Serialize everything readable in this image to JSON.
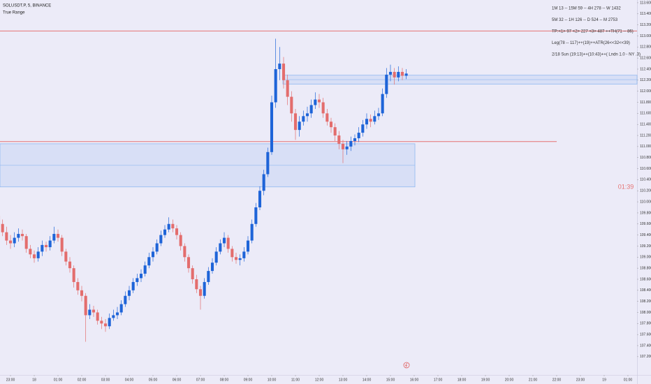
{
  "chart_data": {
    "type": "candlestick",
    "title": "SOLUSDT.P, 5, BINANCE",
    "subtitle": "True Range",
    "info_lines": [
      "1M 13 -- 15M 59 -- 4H 278 -- W 1432",
      "5M 32 -- 1H 126 -- D 524 -- M 2753",
      "TP:<1> 97 <2> 227 <3> 487 ++TH(71 -- 86)",
      "Leg(78 -- 117)++(19)++ATR(26<<32<<39)",
      "2/18 Sun  (19:13)++(10:43)++( Lndn 1.0 - NY .3)"
    ],
    "countdown": "01:39",
    "up_color": "#1e64d8",
    "down_color": "#e36d6d",
    "level_color": "#e57373",
    "zone_color": "#90b8f0",
    "levels": [
      113.09,
      111.09
    ],
    "zones": [
      {
        "top": 111.05,
        "mid": 110.66,
        "bottom": 110.27
      },
      {
        "top": 112.29,
        "mid": 112.21,
        "bottom": 112.13
      }
    ],
    "xlim": [
      0.35,
      161.3
    ],
    "ylim": [
      106.87,
      113.65
    ],
    "xticks": [
      {
        "value": 3,
        "label": "23:00"
      },
      {
        "value": 9,
        "label": "18"
      },
      {
        "value": 15,
        "label": "01:00"
      },
      {
        "value": 21,
        "label": "02:00"
      },
      {
        "value": 27,
        "label": "03:00"
      },
      {
        "value": 33,
        "label": "04:00"
      },
      {
        "value": 39,
        "label": "05:00"
      },
      {
        "value": 45,
        "label": "06:00"
      },
      {
        "value": 51,
        "label": "07:00"
      },
      {
        "value": 57,
        "label": "08:00"
      },
      {
        "value": 63,
        "label": "09:00"
      },
      {
        "value": 69,
        "label": "10:00"
      },
      {
        "value": 75,
        "label": "11:00"
      },
      {
        "value": 81,
        "label": "12:00"
      },
      {
        "value": 87,
        "label": "13:00"
      },
      {
        "value": 93,
        "label": "14:00"
      },
      {
        "value": 99,
        "label": "15:00"
      },
      {
        "value": 105,
        "label": "16:00"
      },
      {
        "value": 111,
        "label": "17:00"
      },
      {
        "value": 117,
        "label": "18:00"
      },
      {
        "value": 123,
        "label": "19:00"
      },
      {
        "value": 129,
        "label": "20:00"
      },
      {
        "value": 135,
        "label": "21:00"
      },
      {
        "value": 141,
        "label": "22:00"
      },
      {
        "value": 147,
        "label": "23:00"
      },
      {
        "value": 153,
        "label": "19"
      },
      {
        "value": 159,
        "label": "01:00"
      }
    ],
    "yticks": [
      {
        "value": 113.6,
        "label": "113.600"
      },
      {
        "value": 113.4,
        "label": "113.400"
      },
      {
        "value": 113.2,
        "label": "113.200"
      },
      {
        "value": 113,
        "label": "113.000"
      },
      {
        "value": 112.8,
        "label": "112.800"
      },
      {
        "value": 112.6,
        "label": "112.600"
      },
      {
        "value": 112.4,
        "label": "112.400"
      },
      {
        "value": 112.2,
        "label": "112.200"
      },
      {
        "value": 112,
        "label": "112.000"
      },
      {
        "value": 111.8,
        "label": "111.800"
      },
      {
        "value": 111.6,
        "label": "111.600"
      },
      {
        "value": 111.4,
        "label": "111.400"
      },
      {
        "value": 111.2,
        "label": "111.200"
      },
      {
        "value": 111,
        "label": "111.000"
      },
      {
        "value": 110.8,
        "label": "110.800"
      },
      {
        "value": 110.6,
        "label": "110.600"
      },
      {
        "value": 110.4,
        "label": "110.400"
      },
      {
        "value": 110.2,
        "label": "110.200"
      },
      {
        "value": 110,
        "label": "110.000"
      },
      {
        "value": 109.8,
        "label": "109.800"
      },
      {
        "value": 109.6,
        "label": "109.600"
      },
      {
        "value": 109.4,
        "label": "109.400"
      },
      {
        "value": 109.2,
        "label": "109.200"
      },
      {
        "value": 109,
        "label": "109.000"
      },
      {
        "value": 108.8,
        "label": "108.800"
      },
      {
        "value": 108.6,
        "label": "108.600"
      },
      {
        "value": 108.4,
        "label": "108.400"
      },
      {
        "value": 108.2,
        "label": "108.200"
      },
      {
        "value": 108,
        "label": "108.000"
      },
      {
        "value": 107.8,
        "label": "107.800"
      },
      {
        "value": 107.6,
        "label": "107.600"
      },
      {
        "value": 107.4,
        "label": "107.400"
      },
      {
        "value": 107.2,
        "label": "107.200"
      }
    ],
    "candles": [
      [
        109.75,
        109.85,
        109.52,
        109.6
      ],
      [
        109.6,
        109.68,
        109.38,
        109.45
      ],
      [
        109.45,
        109.55,
        109.22,
        109.3
      ],
      [
        109.3,
        109.4,
        109.15,
        109.25
      ],
      [
        109.25,
        109.45,
        109.18,
        109.35
      ],
      [
        109.35,
        109.52,
        109.28,
        109.42
      ],
      [
        109.42,
        109.5,
        109.3,
        109.38
      ],
      [
        109.38,
        109.42,
        109.08,
        109.15
      ],
      [
        109.15,
        109.22,
        108.98,
        109.05
      ],
      [
        109.05,
        109.12,
        108.9,
        108.98
      ],
      [
        108.98,
        109.18,
        108.92,
        109.1
      ],
      [
        109.1,
        109.3,
        109.02,
        109.22
      ],
      [
        109.22,
        109.28,
        109.1,
        109.18
      ],
      [
        109.18,
        109.38,
        109.12,
        109.3
      ],
      [
        109.3,
        109.55,
        109.25,
        109.42
      ],
      [
        109.42,
        109.5,
        109.28,
        109.35
      ],
      [
        109.35,
        109.4,
        109.02,
        109.1
      ],
      [
        109.1,
        109.15,
        108.85,
        108.92
      ],
      [
        108.92,
        109.0,
        108.72,
        108.8
      ],
      [
        108.8,
        108.85,
        108.45,
        108.55
      ],
      [
        108.55,
        108.62,
        108.32,
        108.4
      ],
      [
        108.4,
        108.48,
        108.2,
        108.3
      ],
      [
        108.3,
        108.35,
        107.47,
        107.95
      ],
      [
        107.95,
        108.15,
        107.88,
        108.05
      ],
      [
        108.05,
        108.12,
        107.92,
        108.0
      ],
      [
        108.0,
        108.05,
        107.78,
        107.85
      ],
      [
        107.85,
        107.92,
        107.7,
        107.8
      ],
      [
        107.8,
        107.88,
        107.65,
        107.75
      ],
      [
        107.75,
        107.98,
        107.7,
        107.9
      ],
      [
        107.9,
        108.05,
        107.85,
        107.95
      ],
      [
        107.95,
        108.1,
        107.88,
        108.0
      ],
      [
        108.0,
        108.22,
        107.95,
        108.15
      ],
      [
        108.15,
        108.38,
        108.1,
        108.3
      ],
      [
        108.3,
        108.48,
        108.22,
        108.4
      ],
      [
        108.4,
        108.62,
        108.35,
        108.55
      ],
      [
        108.55,
        108.7,
        108.48,
        108.62
      ],
      [
        108.62,
        108.78,
        108.55,
        108.7
      ],
      [
        108.7,
        108.92,
        108.65,
        108.85
      ],
      [
        108.85,
        109.08,
        108.8,
        109.0
      ],
      [
        109.0,
        109.18,
        108.92,
        109.1
      ],
      [
        109.1,
        109.32,
        109.05,
        109.25
      ],
      [
        109.25,
        109.48,
        109.2,
        109.4
      ],
      [
        109.4,
        109.58,
        109.35,
        109.5
      ],
      [
        109.5,
        109.72,
        109.45,
        109.6
      ],
      [
        109.6,
        109.68,
        109.45,
        109.52
      ],
      [
        109.52,
        109.58,
        109.32,
        109.4
      ],
      [
        109.4,
        109.45,
        109.12,
        109.2
      ],
      [
        109.2,
        109.25,
        108.92,
        109.0
      ],
      [
        109.0,
        109.05,
        108.72,
        108.8
      ],
      [
        108.8,
        108.85,
        108.52,
        108.6
      ],
      [
        108.6,
        108.68,
        108.35,
        108.42
      ],
      [
        108.42,
        108.48,
        108.05,
        108.3
      ],
      [
        108.3,
        108.62,
        108.25,
        108.55
      ],
      [
        108.55,
        108.82,
        108.5,
        108.75
      ],
      [
        108.75,
        108.98,
        108.7,
        108.9
      ],
      [
        108.9,
        109.18,
        108.85,
        109.1
      ],
      [
        109.1,
        109.32,
        109.05,
        109.25
      ],
      [
        109.25,
        109.45,
        109.18,
        109.35
      ],
      [
        109.35,
        109.4,
        109.08,
        109.15
      ],
      [
        109.15,
        109.2,
        108.92,
        109.0
      ],
      [
        109.0,
        109.08,
        108.88,
        108.95
      ],
      [
        108.95,
        109.05,
        108.85,
        108.98
      ],
      [
        108.98,
        109.18,
        108.92,
        109.1
      ],
      [
        109.1,
        109.38,
        109.05,
        109.3
      ],
      [
        109.3,
        109.68,
        109.25,
        109.6
      ],
      [
        109.6,
        109.98,
        109.55,
        109.9
      ],
      [
        109.9,
        110.28,
        109.85,
        110.2
      ],
      [
        110.2,
        110.58,
        110.12,
        110.5
      ],
      [
        110.5,
        110.98,
        110.45,
        110.9
      ],
      [
        110.9,
        111.92,
        110.85,
        111.8
      ],
      [
        111.8,
        112.95,
        111.7,
        112.4
      ],
      [
        112.4,
        112.8,
        112.2,
        112.5
      ],
      [
        112.5,
        112.62,
        112.05,
        112.2
      ],
      [
        112.2,
        112.3,
        111.75,
        111.9
      ],
      [
        111.9,
        112.0,
        111.45,
        111.6
      ],
      [
        111.6,
        111.68,
        111.12,
        111.3
      ],
      [
        111.3,
        111.55,
        111.18,
        111.45
      ],
      [
        111.45,
        111.65,
        111.38,
        111.55
      ],
      [
        111.55,
        111.72,
        111.45,
        111.6
      ],
      [
        111.6,
        111.85,
        111.52,
        111.75
      ],
      [
        111.75,
        111.98,
        111.68,
        111.85
      ],
      [
        111.85,
        111.95,
        111.7,
        111.8
      ],
      [
        111.8,
        111.88,
        111.52,
        111.6
      ],
      [
        111.6,
        111.68,
        111.38,
        111.45
      ],
      [
        111.45,
        111.52,
        111.25,
        111.35
      ],
      [
        111.35,
        111.42,
        111.1,
        111.2
      ],
      [
        111.2,
        111.28,
        110.95,
        111.05
      ],
      [
        111.05,
        111.12,
        110.7,
        110.95
      ],
      [
        110.95,
        111.1,
        110.85,
        111.0
      ],
      [
        111.0,
        111.18,
        110.92,
        111.1
      ],
      [
        111.1,
        111.22,
        111.02,
        111.15
      ],
      [
        111.15,
        111.35,
        111.08,
        111.25
      ],
      [
        111.25,
        111.48,
        111.18,
        111.4
      ],
      [
        111.4,
        111.6,
        111.32,
        111.5
      ],
      [
        111.5,
        111.58,
        111.35,
        111.45
      ],
      [
        111.45,
        111.65,
        111.4,
        111.55
      ],
      [
        111.55,
        111.7,
        111.48,
        111.6
      ],
      [
        111.6,
        112.05,
        111.55,
        111.95
      ],
      [
        111.95,
        112.42,
        111.88,
        112.3
      ],
      [
        112.3,
        112.48,
        112.18,
        112.35
      ],
      [
        112.35,
        112.42,
        112.12,
        112.25
      ],
      [
        112.25,
        112.45,
        112.18,
        112.35
      ],
      [
        112.35,
        112.42,
        112.2,
        112.28
      ],
      [
        112.28,
        112.4,
        112.22,
        112.32
      ]
    ]
  }
}
